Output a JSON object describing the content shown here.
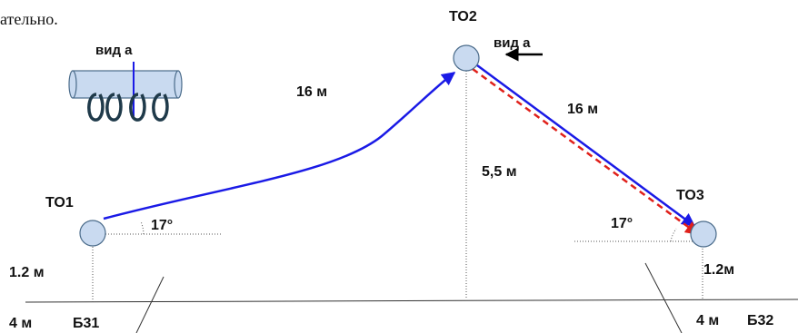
{
  "header_fragment": "ательно.",
  "view_label_left": "вид а",
  "view_label_right": "вид а",
  "nodes": {
    "to1": "ТО1",
    "to2": "ТО2",
    "to3": "ТО3"
  },
  "distances": {
    "left_span": "16 м",
    "right_span": "16 м",
    "mid_height": "5,5 м",
    "left_height": "1.2 м",
    "right_height": "1.2м",
    "left_bottom": "4 м",
    "right_bottom": "4 м"
  },
  "angles": {
    "left": "17°",
    "right": "17°"
  },
  "bases": {
    "left": "Б31",
    "right": "Б32"
  },
  "colors": {
    "blue": "#1a1ae6",
    "red": "#e0201a",
    "node_fill": "#c9daf0",
    "node_stroke": "#4a6b8a",
    "carabiner_stroke": "#1f3a4a"
  }
}
